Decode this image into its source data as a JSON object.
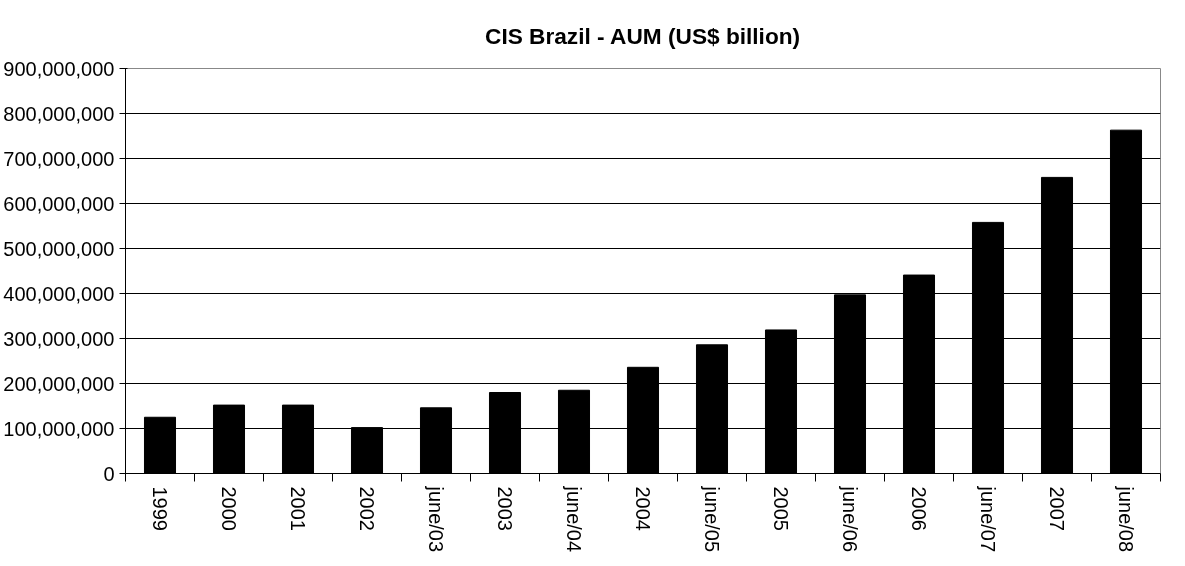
{
  "chart_data": {
    "type": "bar",
    "title": "CIS Brazil - AUM (US$ billion)",
    "categories": [
      "1999",
      "2000",
      "2001",
      "2002",
      "june/03",
      "2003",
      "june/04",
      "2004",
      "june/05",
      "2005",
      "june/06",
      "2006",
      "june/07",
      "2007",
      "june/08"
    ],
    "values": [
      125000000,
      152000000,
      152000000,
      102000000,
      146000000,
      180000000,
      185000000,
      236000000,
      286000000,
      319000000,
      397000000,
      441000000,
      558000000,
      658000000,
      763000000
    ],
    "color": "#000000",
    "ylim": [
      0,
      900000000
    ],
    "yticks": [
      {
        "value": 0,
        "label": "0"
      },
      {
        "value": 100000000,
        "label": "100,000,000"
      },
      {
        "value": 200000000,
        "label": "200,000,000"
      },
      {
        "value": 300000000,
        "label": "300,000,000"
      },
      {
        "value": 400000000,
        "label": "400,000,000"
      },
      {
        "value": 500000000,
        "label": "500,000,000"
      },
      {
        "value": 600000000,
        "label": "600,000,000"
      },
      {
        "value": 700000000,
        "label": "700,000,000"
      },
      {
        "value": 800000000,
        "label": "800,000,000"
      },
      {
        "value": 900000000,
        "label": "900,000,000"
      }
    ],
    "grid": "y"
  }
}
